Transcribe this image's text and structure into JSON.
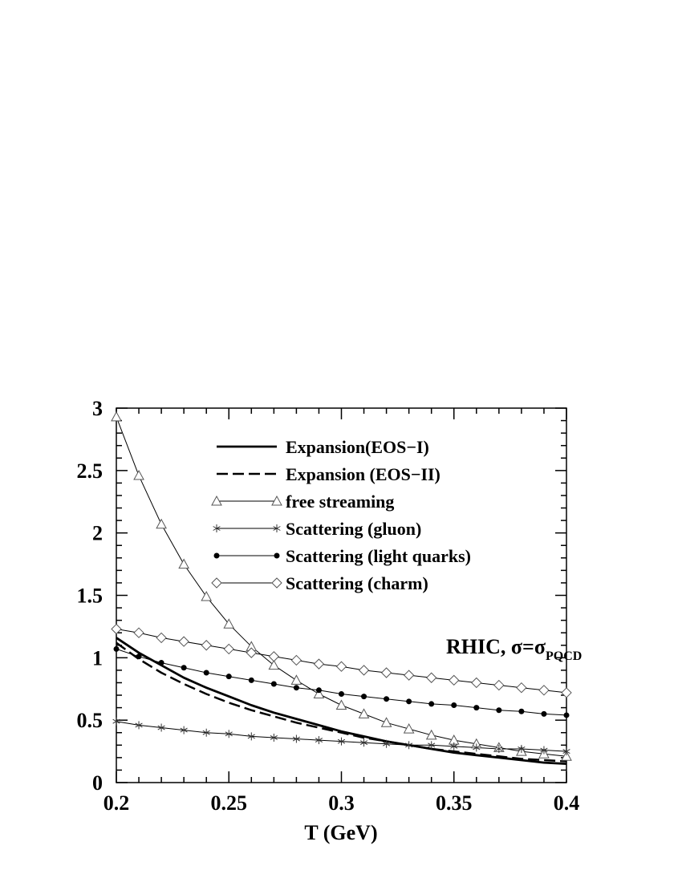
{
  "chart_data": {
    "type": "line",
    "title": "",
    "xlabel": "T (GeV)",
    "ylabel": "",
    "xlim": [
      0.2,
      0.4
    ],
    "ylim": [
      0,
      3
    ],
    "xticks": [
      "0.2",
      "0.25",
      "0.3",
      "0.35",
      "0.4"
    ],
    "yticks": [
      "0",
      "0.5",
      "1",
      "1.5",
      "2",
      "2.5",
      "3"
    ],
    "legend_position": "top-center",
    "grid": false,
    "annotation": {
      "text": "RHIC, σ=σ",
      "subscript": "PQCD"
    },
    "series": [
      {
        "name": "Expansion(EOS−I)",
        "style": "solid-thick",
        "marker": "none",
        "x": [
          0.2,
          0.21,
          0.22,
          0.23,
          0.24,
          0.25,
          0.26,
          0.27,
          0.28,
          0.29,
          0.3,
          0.31,
          0.32,
          0.33,
          0.34,
          0.35,
          0.36,
          0.37,
          0.38,
          0.39,
          0.4
        ],
        "y": [
          1.16,
          1.04,
          0.94,
          0.84,
          0.76,
          0.69,
          0.62,
          0.56,
          0.51,
          0.46,
          0.41,
          0.37,
          0.33,
          0.3,
          0.27,
          0.24,
          0.22,
          0.2,
          0.18,
          0.16,
          0.15
        ]
      },
      {
        "name": "Expansion (EOS−II)",
        "style": "dashed",
        "marker": "none",
        "x": [
          0.2,
          0.21,
          0.22,
          0.23,
          0.24,
          0.25,
          0.26,
          0.27,
          0.28,
          0.29,
          0.3,
          0.31,
          0.32,
          0.33,
          0.34,
          0.35,
          0.36,
          0.37,
          0.38,
          0.39,
          0.4
        ],
        "y": [
          1.12,
          0.99,
          0.88,
          0.79,
          0.71,
          0.64,
          0.58,
          0.53,
          0.48,
          0.44,
          0.4,
          0.36,
          0.33,
          0.3,
          0.27,
          0.25,
          0.23,
          0.21,
          0.19,
          0.18,
          0.17
        ]
      },
      {
        "name": "free streaming",
        "style": "solid",
        "marker": "triangle",
        "x": [
          0.2,
          0.21,
          0.22,
          0.23,
          0.24,
          0.25,
          0.26,
          0.27,
          0.28,
          0.29,
          0.3,
          0.31,
          0.32,
          0.33,
          0.34,
          0.35,
          0.36,
          0.37,
          0.38,
          0.39,
          0.4
        ],
        "y": [
          2.93,
          2.46,
          2.07,
          1.75,
          1.49,
          1.27,
          1.09,
          0.94,
          0.82,
          0.71,
          0.62,
          0.55,
          0.48,
          0.43,
          0.38,
          0.34,
          0.31,
          0.28,
          0.25,
          0.23,
          0.21
        ]
      },
      {
        "name": "Scattering (gluon)",
        "style": "solid",
        "marker": "asterisk",
        "x": [
          0.2,
          0.21,
          0.22,
          0.23,
          0.24,
          0.25,
          0.26,
          0.27,
          0.28,
          0.29,
          0.3,
          0.31,
          0.32,
          0.33,
          0.34,
          0.35,
          0.36,
          0.37,
          0.38,
          0.39,
          0.4
        ],
        "y": [
          0.49,
          0.46,
          0.44,
          0.42,
          0.4,
          0.39,
          0.37,
          0.36,
          0.35,
          0.34,
          0.33,
          0.32,
          0.31,
          0.3,
          0.3,
          0.29,
          0.28,
          0.27,
          0.27,
          0.26,
          0.25
        ]
      },
      {
        "name": "Scattering (light quarks)",
        "style": "solid",
        "marker": "filled-circle",
        "x": [
          0.2,
          0.21,
          0.22,
          0.23,
          0.24,
          0.25,
          0.26,
          0.27,
          0.28,
          0.29,
          0.3,
          0.31,
          0.32,
          0.33,
          0.34,
          0.35,
          0.36,
          0.37,
          0.38,
          0.39,
          0.4
        ],
        "y": [
          1.07,
          1.01,
          0.96,
          0.92,
          0.88,
          0.85,
          0.82,
          0.79,
          0.76,
          0.74,
          0.71,
          0.69,
          0.67,
          0.65,
          0.63,
          0.62,
          0.6,
          0.58,
          0.57,
          0.55,
          0.54
        ]
      },
      {
        "name": "Scattering (charm)",
        "style": "solid",
        "marker": "open-diamond",
        "x": [
          0.2,
          0.21,
          0.22,
          0.23,
          0.24,
          0.25,
          0.26,
          0.27,
          0.28,
          0.29,
          0.3,
          0.31,
          0.32,
          0.33,
          0.34,
          0.35,
          0.36,
          0.37,
          0.38,
          0.39,
          0.4
        ],
        "y": [
          1.23,
          1.2,
          1.16,
          1.13,
          1.1,
          1.07,
          1.04,
          1.01,
          0.98,
          0.95,
          0.93,
          0.9,
          0.88,
          0.86,
          0.84,
          0.82,
          0.8,
          0.78,
          0.76,
          0.74,
          0.72
        ]
      }
    ]
  }
}
